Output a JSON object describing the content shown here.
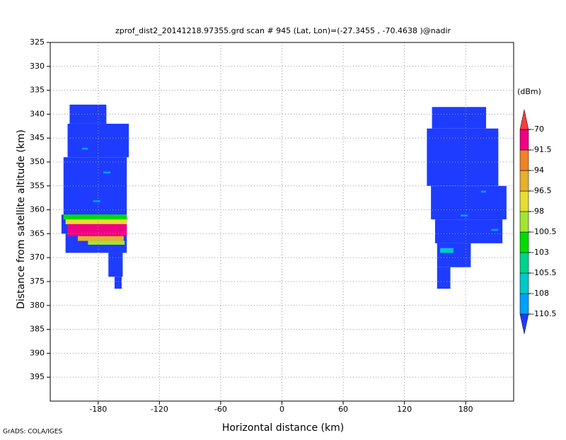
{
  "chart_data": {
    "type": "shaded",
    "title": "zprof_dist2_20141218.97355.grd  scan # 945  (Lat, Lon)=(-27.3455 , -70.4638 )@nadir",
    "x_label": "Horizontal distance (km)",
    "y_label": "Distance from satellite altitude (km)",
    "colorbar_unit": "(dBm)",
    "footer": "GrADS: COLA/IGES",
    "xlim": [
      -227,
      227
    ],
    "ylim": [
      325,
      400
    ],
    "y_inverted": true,
    "xticks": [
      -180,
      -120,
      -60,
      0,
      60,
      120,
      180
    ],
    "yticks": [
      325,
      330,
      335,
      340,
      345,
      350,
      355,
      360,
      365,
      370,
      375,
      380,
      385,
      390,
      395
    ],
    "grid": true,
    "levels": [
      -110.5,
      -108,
      -105.5,
      -103,
      -100.5,
      -98,
      -96.5,
      -94,
      -91.5,
      -70
    ],
    "colors": [
      "#1e3cff",
      "#00a0ff",
      "#00c8c8",
      "#00d28c",
      "#00dc00",
      "#a0e632",
      "#e6dc32",
      "#e6af2d",
      "#f08228",
      "#f00082",
      "#fa3c3c"
    ],
    "cells": [
      {
        "x": [
          -208,
          -172
        ],
        "y": [
          338,
          342
        ],
        "value": -115
      },
      {
        "x": [
          -210,
          -150
        ],
        "y": [
          342,
          349
        ],
        "value": -115
      },
      {
        "x": [
          -214,
          -152
        ],
        "y": [
          349,
          361
        ],
        "value": -115
      },
      {
        "x": [
          -216,
          -152
        ],
        "y": [
          361,
          365
        ],
        "value": -115
      },
      {
        "x": [
          -212,
          -152
        ],
        "y": [
          365,
          369
        ],
        "value": -115
      },
      {
        "x": [
          -170,
          -156
        ],
        "y": [
          369,
          374
        ],
        "value": -115
      },
      {
        "x": [
          -164,
          -157
        ],
        "y": [
          374,
          376.5
        ],
        "value": -115
      },
      {
        "x": [
          -214,
          -152
        ],
        "y": [
          361,
          362
        ],
        "value": -102
      },
      {
        "x": [
          -212,
          -152
        ],
        "y": [
          362,
          363
        ],
        "value": -97
      },
      {
        "x": [
          -210,
          -152
        ],
        "y": [
          363,
          365.5
        ],
        "value": -85
      },
      {
        "x": [
          -200,
          -155
        ],
        "y": [
          365.5,
          366.5
        ],
        "value": -95
      },
      {
        "x": [
          -190,
          -154
        ],
        "y": [
          366.5,
          367.3
        ],
        "value": -100
      },
      {
        "x": [
          -196,
          -190
        ],
        "y": [
          347,
          347.4
        ],
        "value": -109
      },
      {
        "x": [
          -175,
          -168
        ],
        "y": [
          352,
          352.4
        ],
        "value": -109
      },
      {
        "x": [
          -185,
          -178
        ],
        "y": [
          358,
          358.4
        ],
        "value": -109
      },
      {
        "x": [
          147,
          200
        ],
        "y": [
          338.5,
          343
        ],
        "value": -115
      },
      {
        "x": [
          142,
          212
        ],
        "y": [
          343,
          355
        ],
        "value": -115
      },
      {
        "x": [
          146,
          220
        ],
        "y": [
          355,
          362
        ],
        "value": -115
      },
      {
        "x": [
          150,
          216
        ],
        "y": [
          362,
          367
        ],
        "value": -115
      },
      {
        "x": [
          152,
          185
        ],
        "y": [
          367,
          372
        ],
        "value": -115
      },
      {
        "x": [
          152,
          165
        ],
        "y": [
          372,
          376.5
        ],
        "value": -115
      },
      {
        "x": [
          155,
          168
        ],
        "y": [
          368,
          369
        ],
        "value": -107
      },
      {
        "x": [
          195,
          200
        ],
        "y": [
          356,
          356.4
        ],
        "value": -109
      },
      {
        "x": [
          175,
          182
        ],
        "y": [
          361,
          361.4
        ],
        "value": -109
      },
      {
        "x": [
          205,
          212
        ],
        "y": [
          364,
          364.4
        ],
        "value": -109
      }
    ]
  }
}
